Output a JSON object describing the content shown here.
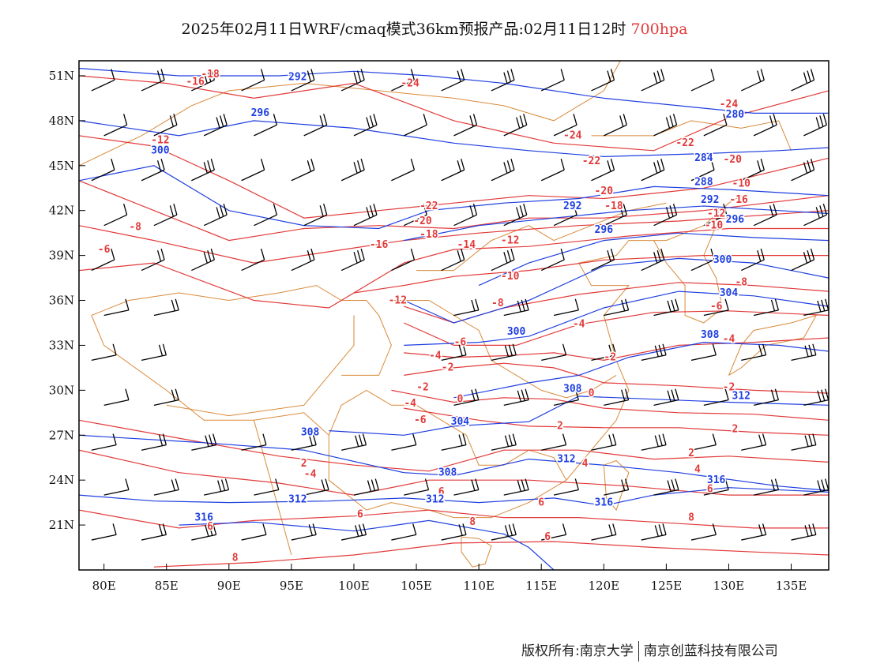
{
  "title": {
    "text": "2025年02月11日WRF/cmaq模式36km预报产品:02月11日12时",
    "level": "700hpa",
    "level_color": "#e23a3a"
  },
  "map": {
    "lat_labels": [
      "51N",
      "48N",
      "45N",
      "42N",
      "39N",
      "36N",
      "33N",
      "30N",
      "27N",
      "24N",
      "21N"
    ],
    "lon_labels": [
      "80E",
      "85E",
      "90E",
      "95E",
      "100E",
      "105E",
      "110E",
      "115E",
      "120E",
      "125E",
      "130E",
      "135E"
    ],
    "lat_values": [
      51,
      48,
      45,
      42,
      39,
      36,
      33,
      30,
      27,
      24,
      21
    ],
    "lon_values": [
      80,
      85,
      90,
      95,
      100,
      105,
      110,
      115,
      120,
      125,
      130,
      135
    ],
    "lon_range": [
      78,
      138
    ],
    "lat_range": [
      18,
      52
    ],
    "colors": {
      "temperature": "#e23a3a",
      "height": "#1f3fe0",
      "boundary": "#d98a3a",
      "wind": "#000000"
    },
    "temperature_labels": [
      {
        "text": "-18",
        "lon": 88.5,
        "lat": 50.9
      },
      {
        "text": "-16",
        "lon": 87.3,
        "lat": 50.4
      },
      {
        "text": "-24",
        "lon": 104.5,
        "lat": 50.3
      },
      {
        "text": "-12",
        "lon": 84.5,
        "lat": 46.5
      },
      {
        "text": "-24",
        "lon": 117.5,
        "lat": 46.8
      },
      {
        "text": "-24",
        "lon": 130,
        "lat": 48.9
      },
      {
        "text": "-22",
        "lon": 119,
        "lat": 45.1
      },
      {
        "text": "-22",
        "lon": 126.5,
        "lat": 46.3
      },
      {
        "text": "-20",
        "lon": 130.3,
        "lat": 45.2
      },
      {
        "text": "-8",
        "lon": 82.5,
        "lat": 40.7
      },
      {
        "text": "-6",
        "lon": 80,
        "lat": 39.2
      },
      {
        "text": "-22",
        "lon": 106,
        "lat": 42.1
      },
      {
        "text": "-20",
        "lon": 105.5,
        "lat": 41.1
      },
      {
        "text": "-18",
        "lon": 106,
        "lat": 40.2
      },
      {
        "text": "-16",
        "lon": 102,
        "lat": 39.5
      },
      {
        "text": "-14",
        "lon": 109,
        "lat": 39.5
      },
      {
        "text": "-12",
        "lon": 112.5,
        "lat": 39.8
      },
      {
        "text": "-20",
        "lon": 120,
        "lat": 43.1
      },
      {
        "text": "-18",
        "lon": 120.8,
        "lat": 42.1
      },
      {
        "text": "-16",
        "lon": 130.8,
        "lat": 42.5
      },
      {
        "text": "-12",
        "lon": 129,
        "lat": 41.6
      },
      {
        "text": "-10",
        "lon": 128.8,
        "lat": 40.8
      },
      {
        "text": "-10",
        "lon": 131,
        "lat": 43.6
      },
      {
        "text": "-10",
        "lon": 112.5,
        "lat": 37.4
      },
      {
        "text": "-12",
        "lon": 103.5,
        "lat": 35.8
      },
      {
        "text": "-8",
        "lon": 111.5,
        "lat": 35.6
      },
      {
        "text": "-6",
        "lon": 108.5,
        "lat": 33
      },
      {
        "text": "-4",
        "lon": 118,
        "lat": 34.2
      },
      {
        "text": "-6",
        "lon": 129,
        "lat": 35.4
      },
      {
        "text": "-8",
        "lon": 131,
        "lat": 37
      },
      {
        "text": "-4",
        "lon": 130,
        "lat": 33.2
      },
      {
        "text": "-4",
        "lon": 106.5,
        "lat": 32.1
      },
      {
        "text": "-2",
        "lon": 107.5,
        "lat": 31.3
      },
      {
        "text": "-2",
        "lon": 120.5,
        "lat": 32
      },
      {
        "text": "-2",
        "lon": 105.5,
        "lat": 30
      },
      {
        "text": "-2",
        "lon": 130,
        "lat": 30
      },
      {
        "text": "0",
        "lon": 108.5,
        "lat": 29.2
      },
      {
        "text": "0",
        "lon": 119,
        "lat": 29.6
      },
      {
        "text": "-4",
        "lon": 104.5,
        "lat": 28.9
      },
      {
        "text": "-6",
        "lon": 105.3,
        "lat": 27.8
      },
      {
        "text": "2",
        "lon": 116.5,
        "lat": 27.4
      },
      {
        "text": "2",
        "lon": 130.5,
        "lat": 27.2
      },
      {
        "text": "2",
        "lon": 96,
        "lat": 24.9
      },
      {
        "text": "-4",
        "lon": 96.5,
        "lat": 24.2
      },
      {
        "text": "4",
        "lon": 118.5,
        "lat": 24.9
      },
      {
        "text": "2",
        "lon": 127,
        "lat": 25.6
      },
      {
        "text": "4",
        "lon": 127.5,
        "lat": 24.5
      },
      {
        "text": "6",
        "lon": 128.5,
        "lat": 23.2
      },
      {
        "text": "6",
        "lon": 115,
        "lat": 22.3
      },
      {
        "text": "6",
        "lon": 107,
        "lat": 23
      },
      {
        "text": "6",
        "lon": 100.5,
        "lat": 21.5
      },
      {
        "text": "6",
        "lon": 88.5,
        "lat": 20.7
      },
      {
        "text": "8",
        "lon": 109.5,
        "lat": 21
      },
      {
        "text": "8",
        "lon": 127,
        "lat": 21.3
      },
      {
        "text": "6",
        "lon": 115.5,
        "lat": 20
      },
      {
        "text": "8",
        "lon": 90.5,
        "lat": 18.6
      }
    ],
    "height_labels": [
      {
        "text": "292",
        "lon": 95.5,
        "lat": 50.7
      },
      {
        "text": "296",
        "lon": 92.5,
        "lat": 48.3
      },
      {
        "text": "300",
        "lon": 84.5,
        "lat": 45.8
      },
      {
        "text": "280",
        "lon": 130.5,
        "lat": 48.2
      },
      {
        "text": "284",
        "lon": 128,
        "lat": 45.3
      },
      {
        "text": "288",
        "lon": 128,
        "lat": 43.7
      },
      {
        "text": "292",
        "lon": 128.5,
        "lat": 42.5
      },
      {
        "text": "292",
        "lon": 117.5,
        "lat": 42.1
      },
      {
        "text": "296",
        "lon": 130.5,
        "lat": 41.2
      },
      {
        "text": "296",
        "lon": 120,
        "lat": 40.5
      },
      {
        "text": "300",
        "lon": 129.5,
        "lat": 38.5
      },
      {
        "text": "304",
        "lon": 130,
        "lat": 36.3
      },
      {
        "text": "308",
        "lon": 128.5,
        "lat": 33.5
      },
      {
        "text": "300",
        "lon": 113,
        "lat": 33.7
      },
      {
        "text": "308",
        "lon": 117.5,
        "lat": 29.9
      },
      {
        "text": "304",
        "lon": 108.5,
        "lat": 27.7
      },
      {
        "text": "308",
        "lon": 96.5,
        "lat": 27
      },
      {
        "text": "312",
        "lon": 131,
        "lat": 29.4
      },
      {
        "text": "312",
        "lon": 95.5,
        "lat": 22.5
      },
      {
        "text": "312",
        "lon": 117,
        "lat": 25.2
      },
      {
        "text": "308",
        "lon": 107.5,
        "lat": 24.3
      },
      {
        "text": "312",
        "lon": 106.5,
        "lat": 22.5
      },
      {
        "text": "316",
        "lon": 88,
        "lat": 21.3
      },
      {
        "text": "316",
        "lon": 120,
        "lat": 22.3
      },
      {
        "text": "316",
        "lon": 129,
        "lat": 23.8
      }
    ]
  },
  "credit": {
    "left": "版权所有:南京大学",
    "right": "南京创蓝科技有限公司"
  }
}
